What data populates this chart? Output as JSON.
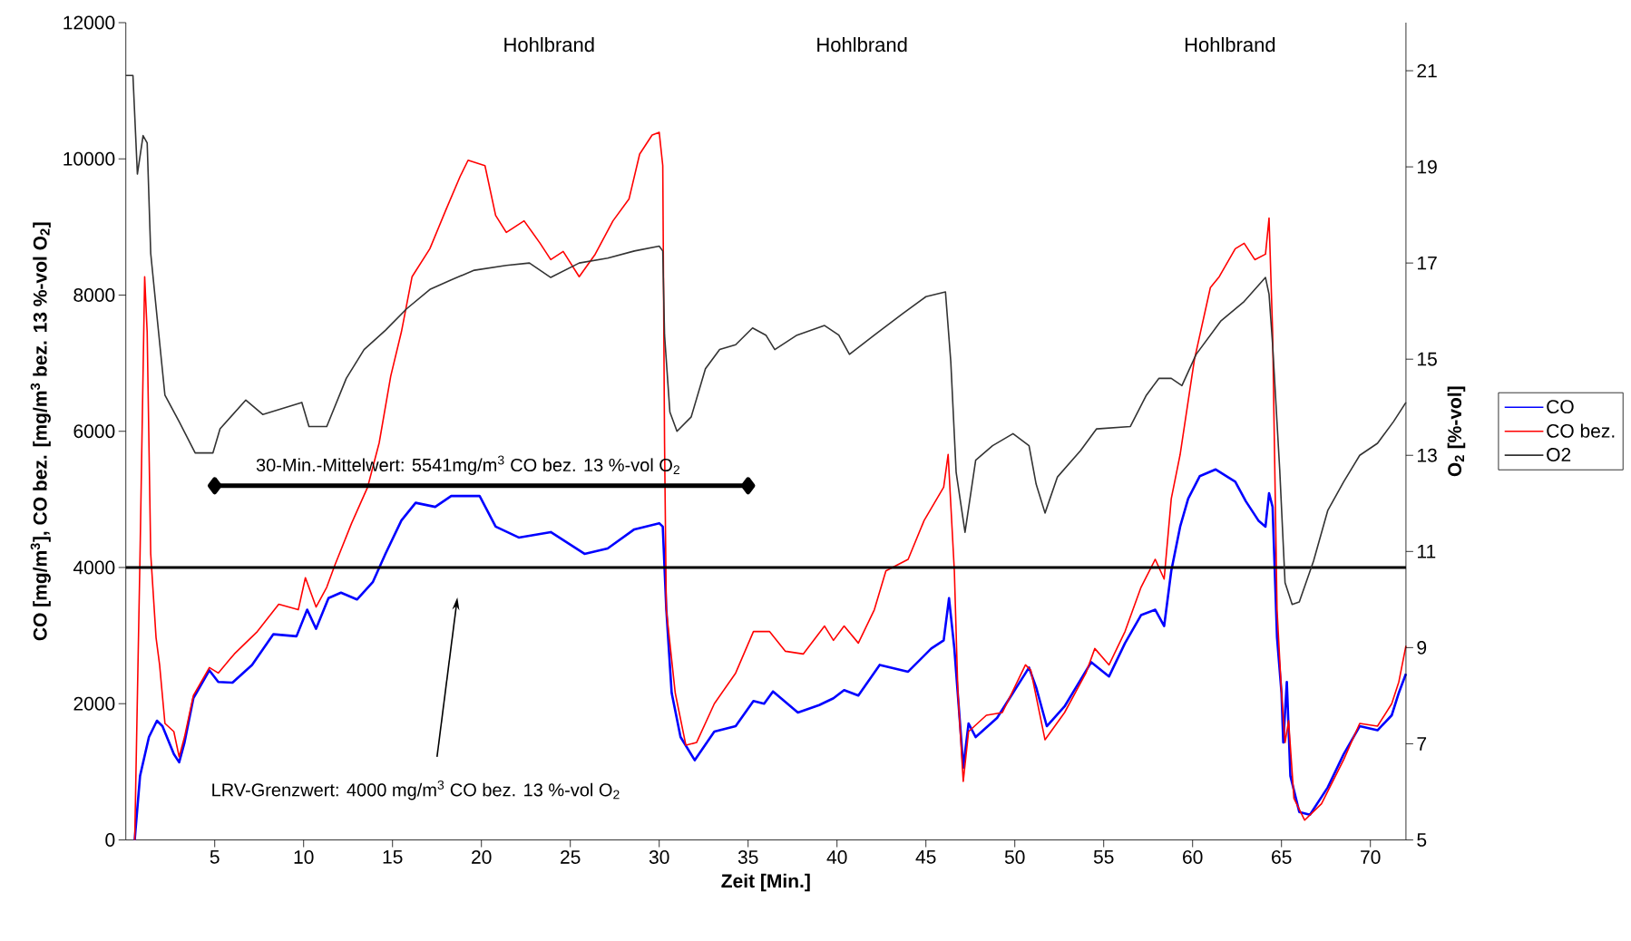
{
  "chart_data": {
    "type": "line",
    "xlabel": "Zeit [Min.]",
    "ylabel": "CO [mg/m$^{3}$], CO bez. [mg/m$^{3}$ bez. 13 %-vol O$_{2}$]",
    "y2label": "O$_{2}$ [%-vol]",
    "xlim": [
      0,
      72
    ],
    "xticks": [
      5,
      10,
      15,
      20,
      25,
      30,
      35,
      40,
      45,
      50,
      55,
      60,
      65,
      70
    ],
    "ylim": [
      0,
      12000
    ],
    "yticks": [
      0,
      2000,
      4000,
      6000,
      8000,
      10000,
      12000
    ],
    "y2lim": [
      5,
      22
    ],
    "y2ticks": [
      5,
      7,
      9,
      11,
      13,
      15,
      17,
      19,
      21
    ],
    "legend": "right",
    "series": [
      {
        "name": "CO",
        "color": "#0000ff",
        "x": [
          0.5,
          0.8,
          1.3,
          1.75,
          2.06,
          2.7,
          3.0,
          3.3,
          3.8,
          4.7,
          5.2,
          6.0,
          7.1,
          8.3,
          9.6,
          10.2,
          10.7,
          11.4,
          12.1,
          13.0,
          13.9,
          14.6,
          15.5,
          16.3,
          17.4,
          18.3,
          19.9,
          20.8,
          22.1,
          23.9,
          25.8,
          27.1,
          28.6,
          30.0,
          30.2,
          30.4,
          30.7,
          31.2,
          32.0,
          33.1,
          34.3,
          35.3,
          35.9,
          36.4,
          37.8,
          39.0,
          39.8,
          40.4,
          41.2,
          42.4,
          44.0,
          45.3,
          46.0,
          46.3,
          46.6,
          47.0,
          47.1,
          47.4,
          47.8,
          49.0,
          49.9,
          50.8,
          51.2,
          51.8,
          52.8,
          54.3,
          55.3,
          56.2,
          57.1,
          57.9,
          58.4,
          58.8,
          59.3,
          59.75,
          60.4,
          61.3,
          62.4,
          63.0,
          63.7,
          64.1,
          64.3,
          64.5,
          64.75,
          65.0,
          65.1,
          65.3,
          65.5,
          66.0,
          66.6,
          67.6,
          68.5,
          69.4,
          70.4,
          71.2,
          71.6,
          72.0
        ],
        "values": [
          0,
          940,
          1510,
          1750,
          1670,
          1260,
          1140,
          1430,
          2080,
          2490,
          2320,
          2310,
          2570,
          3020,
          2990,
          3380,
          3100,
          3550,
          3630,
          3530,
          3790,
          4200,
          4690,
          4950,
          4890,
          5050,
          5050,
          4600,
          4440,
          4520,
          4200,
          4280,
          4560,
          4650,
          4600,
          3380,
          2160,
          1510,
          1170,
          1590,
          1670,
          2040,
          2000,
          2180,
          1870,
          1980,
          2080,
          2200,
          2120,
          2570,
          2470,
          2810,
          2930,
          3550,
          2810,
          1430,
          1060,
          1710,
          1510,
          1790,
          2160,
          2530,
          2240,
          1670,
          1960,
          2610,
          2400,
          2890,
          3300,
          3380,
          3140,
          3950,
          4600,
          5010,
          5340,
          5440,
          5260,
          4970,
          4690,
          4600,
          5090,
          4890,
          2970,
          2160,
          1430,
          2320,
          940,
          410,
          370,
          770,
          1260,
          1670,
          1610,
          1830,
          2160,
          2440
        ]
      },
      {
        "name": "CO bez.",
        "color": "#ff0000",
        "x": [
          0.5,
          0.8,
          1.06,
          1.2,
          1.4,
          1.7,
          1.9,
          2.2,
          2.7,
          3.0,
          3.3,
          3.8,
          4.7,
          5.2,
          6.1,
          7.4,
          8.6,
          9.7,
          10.1,
          10.7,
          11.3,
          11.75,
          12.7,
          13.6,
          14.25,
          14.9,
          15.5,
          16.1,
          17.1,
          18.0,
          18.8,
          19.25,
          20.2,
          20.8,
          21.4,
          22.4,
          23.3,
          23.9,
          24.6,
          25.5,
          26.4,
          27.4,
          28.3,
          28.9,
          29.6,
          30.0,
          30.2,
          30.3,
          30.4,
          30.9,
          31.5,
          32.1,
          33.1,
          34.3,
          35.3,
          36.2,
          37.1,
          38.1,
          39.3,
          39.8,
          40.4,
          41.2,
          42.1,
          42.75,
          44.0,
          44.9,
          46.0,
          46.25,
          46.6,
          46.8,
          47.1,
          47.4,
          48.4,
          49.3,
          50.6,
          50.9,
          51.7,
          52.8,
          54.0,
          54.5,
          55.3,
          56.2,
          57.1,
          57.9,
          58.4,
          58.8,
          59.3,
          60.1,
          61.0,
          61.5,
          62.4,
          62.9,
          63.5,
          64.1,
          64.3,
          64.5,
          64.75,
          65.0,
          65.2,
          65.4,
          65.7,
          66.3,
          67.25,
          68.5,
          69.4,
          70.4,
          71.2,
          71.6,
          72.0
        ],
        "values": [
          0,
          4200,
          8270,
          7460,
          4200,
          2970,
          2570,
          1710,
          1590,
          1220,
          1510,
          2120,
          2530,
          2450,
          2730,
          3060,
          3460,
          3380,
          3850,
          3420,
          3710,
          4030,
          4650,
          5180,
          5830,
          6810,
          7460,
          8270,
          8680,
          9250,
          9740,
          9980,
          9900,
          9170,
          8920,
          9090,
          8760,
          8520,
          8640,
          8270,
          8600,
          9090,
          9410,
          10070,
          10350,
          10390,
          9900,
          5830,
          3380,
          2160,
          1390,
          1430,
          2000,
          2450,
          3060,
          3060,
          2770,
          2730,
          3140,
          2930,
          3140,
          2890,
          3380,
          3950,
          4120,
          4690,
          5180,
          5660,
          3950,
          2160,
          860,
          1590,
          1830,
          1870,
          2570,
          2490,
          1470,
          1870,
          2450,
          2810,
          2570,
          3060,
          3710,
          4120,
          3830,
          5010,
          5660,
          7050,
          8110,
          8270,
          8680,
          8760,
          8520,
          8600,
          9130,
          7460,
          3380,
          2160,
          1430,
          1750,
          610,
          290,
          530,
          1180,
          1710,
          1670,
          2000,
          2320,
          2850
        ]
      },
      {
        "name": "O2",
        "color": "#333333",
        "axis": "y2",
        "x": [
          0.0,
          0.4,
          0.65,
          0.97,
          1.2,
          1.4,
          1.75,
          2.2,
          3.0,
          3.9,
          4.9,
          5.3,
          6.75,
          7.7,
          9.9,
          10.3,
          11.3,
          12.4,
          13.4,
          14.6,
          15.8,
          17.1,
          18.3,
          19.6,
          21.4,
          22.7,
          23.9,
          25.5,
          27.1,
          28.6,
          30.0,
          30.2,
          30.3,
          30.6,
          31.0,
          31.8,
          32.6,
          33.4,
          34.3,
          35.25,
          36.0,
          36.5,
          37.75,
          39.3,
          40.1,
          40.7,
          42.1,
          43.7,
          45.0,
          46.1,
          46.4,
          46.7,
          47.2,
          47.8,
          48.75,
          49.9,
          50.8,
          51.2,
          51.7,
          52.4,
          53.7,
          54.6,
          56.5,
          57.4,
          58.1,
          58.8,
          59.4,
          60.2,
          61.6,
          62.9,
          64.1,
          64.3,
          64.5,
          64.9,
          65.2,
          65.6,
          66.0,
          66.8,
          67.6,
          68.5,
          69.4,
          70.4,
          71.3,
          72.0
        ],
        "values": [
          20.9,
          20.9,
          18.85,
          19.65,
          19.5,
          17.2,
          15.9,
          14.25,
          13.7,
          13.05,
          13.05,
          13.55,
          14.15,
          13.85,
          14.1,
          13.6,
          13.6,
          14.6,
          15.2,
          15.6,
          16.05,
          16.45,
          16.65,
          16.85,
          16.95,
          17.0,
          16.7,
          17.0,
          17.1,
          17.25,
          17.35,
          17.25,
          15.5,
          13.9,
          13.5,
          13.8,
          14.8,
          15.2,
          15.3,
          15.65,
          15.5,
          15.2,
          15.5,
          15.7,
          15.5,
          15.1,
          15.5,
          15.95,
          16.3,
          16.4,
          14.95,
          12.65,
          11.4,
          12.9,
          13.2,
          13.45,
          13.2,
          12.4,
          11.8,
          12.55,
          13.1,
          13.55,
          13.6,
          14.25,
          14.6,
          14.6,
          14.45,
          15.1,
          15.8,
          16.2,
          16.7,
          16.35,
          15.3,
          12.7,
          10.35,
          9.9,
          9.95,
          10.8,
          11.85,
          12.45,
          13.0,
          13.25,
          13.7,
          14.1
        ]
      },
      {
        "type": "line",
        "color": "#000000",
        "marker": "diamond",
        "x": [
          5,
          35
        ],
        "values": [
          5200,
          5200
        ]
      }
    ],
    "ref_lines": [
      {
        "axis": "y",
        "value": 4000,
        "color": "#000000"
      }
    ],
    "annotations": [
      "Hohlbrand",
      "Hohlbrand",
      "Hohlbrand",
      {
        "text": "30-Min.-Mittelwert: 5541mg/m$^{3}$ CO bez. 13 %-vol O$_{2}$",
        "x": 5,
        "y": 5200
      },
      "LRV-Grenzwert: 4000 mg/m$^{3}$ CO bez. 13 %-vol O$_{2}$"
    ]
  }
}
